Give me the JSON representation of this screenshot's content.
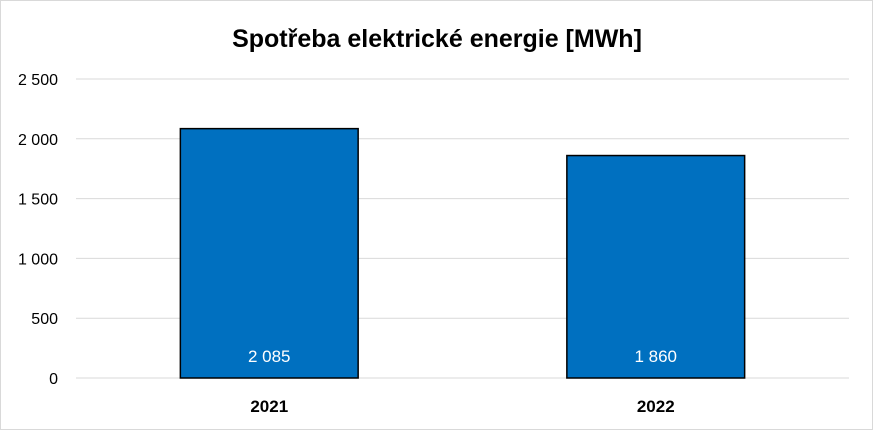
{
  "chart_data": {
    "type": "bar",
    "title": "Spotřeba elektrické energie [MWh]",
    "xlabel": "",
    "ylabel": "",
    "categories": [
      "2021",
      "2022"
    ],
    "values": [
      2085,
      1860
    ],
    "data_labels": [
      "2 085",
      "1 860"
    ],
    "y_ticks": [
      0,
      500,
      1000,
      1500,
      2000,
      2500
    ],
    "y_tick_labels": [
      "0",
      "500",
      "1 000",
      "1 500",
      "2 000",
      "2 500"
    ],
    "ylim": [
      0,
      2500
    ],
    "grid": true,
    "legend": "none",
    "bar_color": "#0070c0",
    "bar_outline_color": "#000000",
    "gridline_color": "#d9d9d9"
  }
}
